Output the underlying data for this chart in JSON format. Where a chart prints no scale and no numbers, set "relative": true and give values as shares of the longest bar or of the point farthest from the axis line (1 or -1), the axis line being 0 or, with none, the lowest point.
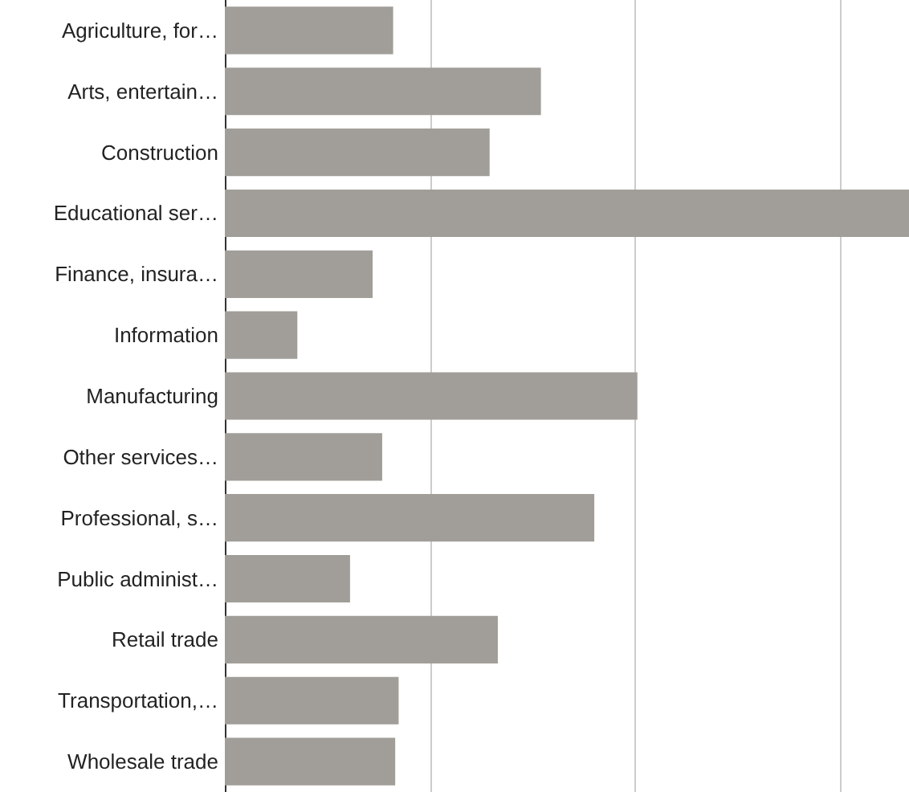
{
  "chart_data": {
    "type": "bar",
    "orientation": "horizontal",
    "relative": true,
    "grid": "x",
    "categories": [
      "Agriculture, for…",
      "Arts, entertain…",
      "Construction",
      "Educational ser…",
      "Finance, insura…",
      "Information",
      "Manufacturing",
      "Other services…",
      "Professional, s…",
      "Public administ…",
      "Retail trade",
      "Transportation,…",
      "Wholesale trade"
    ],
    "values": [
      0.246,
      0.462,
      0.387,
      1,
      0.216,
      0.106,
      0.603,
      0.23,
      0.54,
      0.183,
      0.399,
      0.254,
      0.249
    ],
    "color": "#a19e99"
  }
}
